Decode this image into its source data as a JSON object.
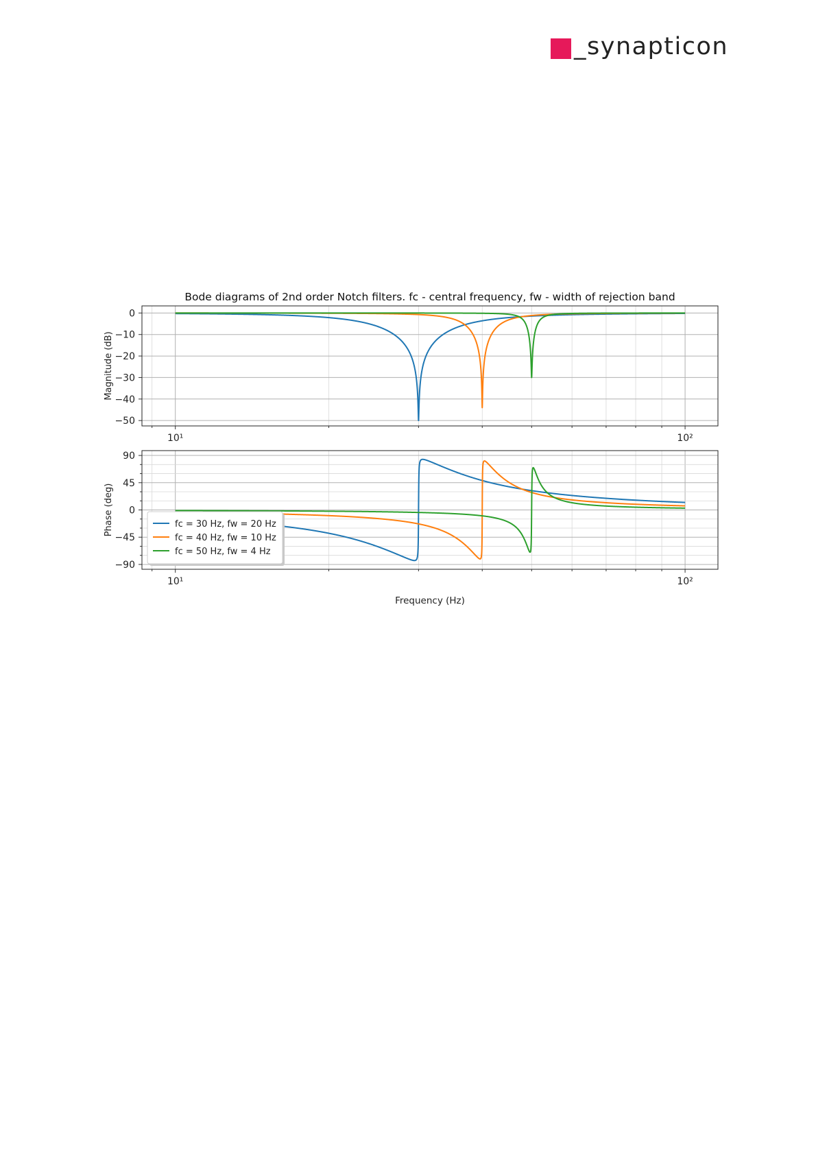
{
  "logo": {
    "text": "_synapticon",
    "accent_color": "#e6195a",
    "text_color": "#222222"
  },
  "chart_data": [
    {
      "type": "line",
      "panel": "magnitude",
      "title": "Bode diagrams of 2nd order Notch filters. fc - central frequency, fw - width of rejection band",
      "xlabel": "",
      "ylabel": "Magnitude (dB)",
      "xscale": "log",
      "xlim": [
        8.6,
        116
      ],
      "ylim": [
        -52.5,
        3.3
      ],
      "x_ticks": [
        10,
        100
      ],
      "x_tick_labels": [
        "10¹",
        "10²"
      ],
      "y_ticks": [
        0,
        -10,
        -20,
        -30,
        -40,
        -50
      ],
      "y_tick_labels": [
        "0",
        "−10",
        "−20",
        "−30",
        "−40",
        "−50"
      ],
      "grid": true,
      "series": [
        {
          "name": "fc = 30 Hz, fw = 20 Hz",
          "color": "#1f77b4",
          "fc": 30,
          "fw": 20,
          "min_db": -50
        },
        {
          "name": "fc = 40 Hz, fw = 10 Hz",
          "color": "#ff7f0e",
          "fc": 40,
          "fw": 10,
          "min_db": -44
        },
        {
          "name": "fc = 50 Hz, fw = 4 Hz",
          "color": "#2ca02c",
          "fc": 50,
          "fw": 4,
          "min_db": -30
        }
      ]
    },
    {
      "type": "line",
      "panel": "phase",
      "title": "",
      "xlabel": "Frequency (Hz)",
      "ylabel": "Phase (deg)",
      "xscale": "log",
      "xlim": [
        8.6,
        116
      ],
      "ylim": [
        -98,
        98
      ],
      "x_ticks": [
        10,
        100
      ],
      "x_tick_labels": [
        "10¹",
        "10²"
      ],
      "y_ticks": [
        90,
        45,
        0,
        -45,
        -90
      ],
      "y_tick_labels": [
        "90",
        "45",
        "0",
        "−45",
        "−90"
      ],
      "grid": true,
      "legend_position": "lower-left",
      "series": [
        {
          "name": "fc = 30 Hz, fw = 20 Hz",
          "color": "#1f77b4",
          "fc": 30,
          "fw": 20
        },
        {
          "name": "fc = 40 Hz, fw = 10 Hz",
          "color": "#ff7f0e",
          "fc": 40,
          "fw": 10
        },
        {
          "name": "fc = 50 Hz, fw = 4 Hz",
          "color": "#2ca02c",
          "fc": 50,
          "fw": 4
        }
      ]
    }
  ]
}
